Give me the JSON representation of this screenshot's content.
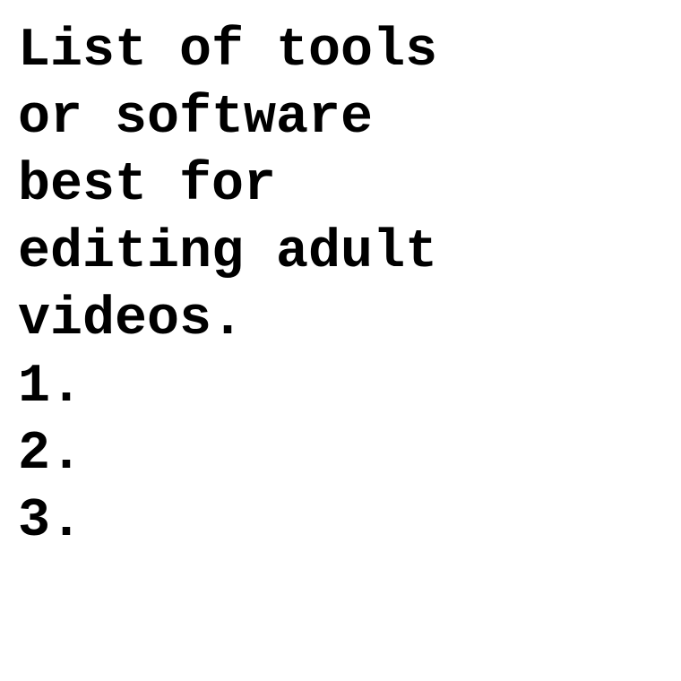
{
  "document": {
    "heading_lines": [
      "List of tools",
      "or software",
      "best for",
      "editing adult",
      "videos."
    ],
    "list_items": [
      "1.",
      "2.",
      "3."
    ]
  }
}
